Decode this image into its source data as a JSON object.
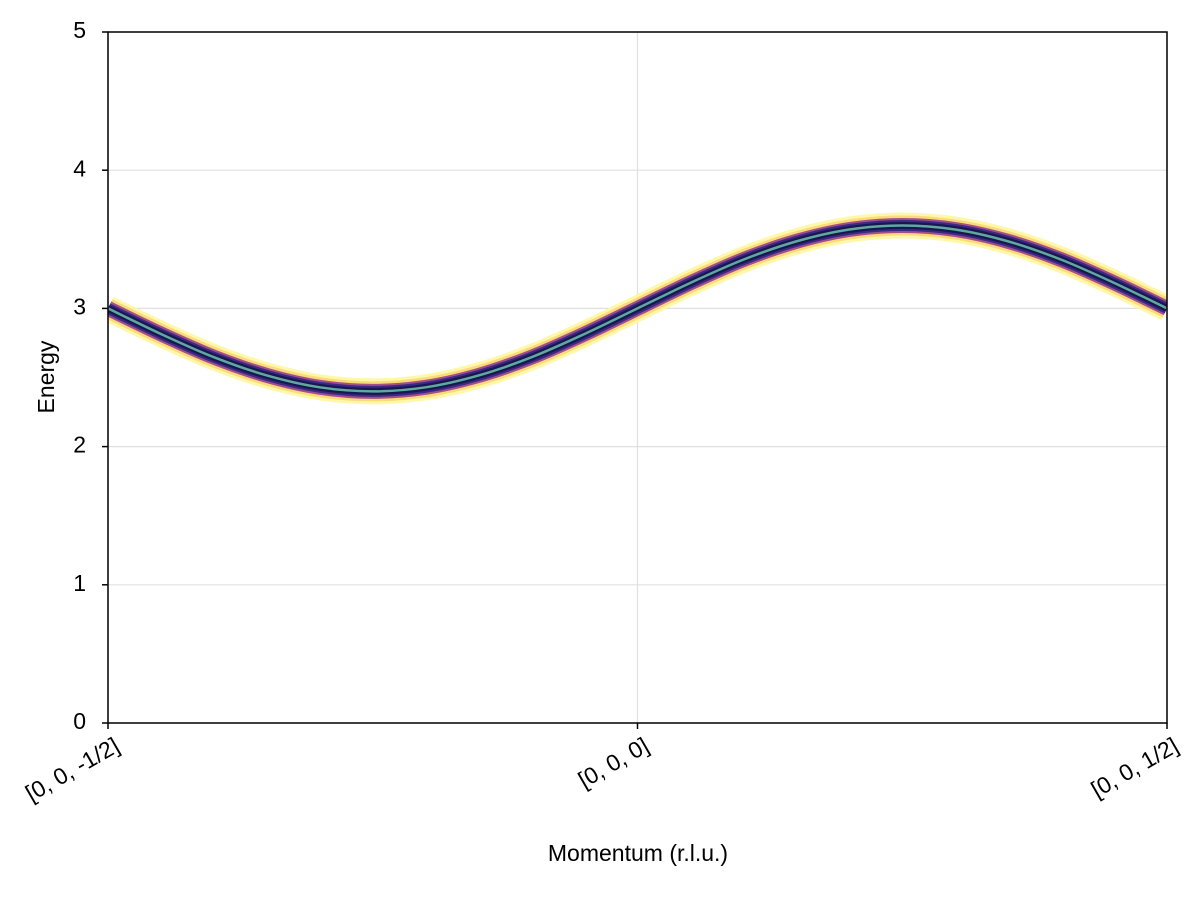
{
  "chart_data": {
    "type": "line",
    "x_label": "Momentum (r.l.u.)",
    "y_label": "Energy",
    "x": [
      -0.5,
      -0.45,
      -0.4,
      -0.35,
      -0.3,
      -0.25,
      -0.2,
      -0.15,
      -0.1,
      -0.05,
      0,
      0.05,
      0.1,
      0.15,
      0.2,
      0.25,
      0.3,
      0.35,
      0.4,
      0.45,
      0.5
    ],
    "series": [
      {
        "color": "#5fa8a0",
        "values": [
          3,
          2.815,
          2.647,
          2.515,
          2.429,
          2.4,
          2.429,
          2.515,
          2.647,
          2.815,
          3,
          3.185,
          3.353,
          3.485,
          3.571,
          3.6,
          3.571,
          3.485,
          3.353,
          3.185,
          3
        ]
      }
    ],
    "xlim": [
      -0.5,
      0.5
    ],
    "xticks": [
      {
        "value": -0.5,
        "label": "[0, 0, -1/2]"
      },
      {
        "value": 0,
        "label": "[0, 0, 0]"
      },
      {
        "value": 0.5,
        "label": "[0, 0, 1/2]"
      }
    ],
    "ylim": [
      0,
      5
    ],
    "yticks": [
      0,
      1,
      2,
      3,
      4,
      5
    ],
    "grid": true
  }
}
